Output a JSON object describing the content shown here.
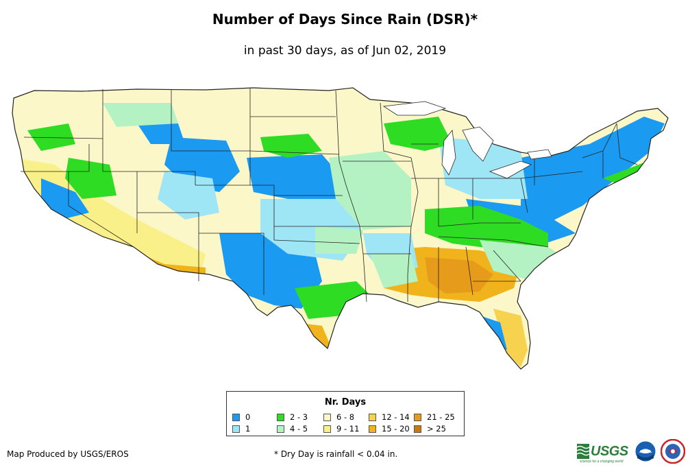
{
  "title": "Number of Days Since Rain (DSR)*",
  "subtitle": "in past 30 days, as of Jun 02, 2019",
  "legend": {
    "title": "Nr. Days",
    "items": [
      {
        "label": "0",
        "color": "#1a9af0"
      },
      {
        "label": "1",
        "color": "#9ee6f5"
      },
      {
        "label": "2 - 3",
        "color": "#2fdc24"
      },
      {
        "label": "4 - 5",
        "color": "#b5f2c3"
      },
      {
        "label": "6 - 8",
        "color": "#fbf7c9"
      },
      {
        "label": "9 - 11",
        "color": "#f9f08a"
      },
      {
        "label": "12 - 14",
        "color": "#f6d24f"
      },
      {
        "label": "15 - 20",
        "color": "#f1b31b"
      },
      {
        "label": "21 - 25",
        "color": "#e79b1a"
      },
      {
        "label": "> 25",
        "color": "#c77b0f"
      }
    ]
  },
  "footer": {
    "credit": "Map Produced by USGS/EROS",
    "note": "* Dry Day is rainfall < 0.04 in."
  },
  "logos": {
    "usgs": "USGS",
    "usgs_tagline": "science for a changing world"
  }
}
